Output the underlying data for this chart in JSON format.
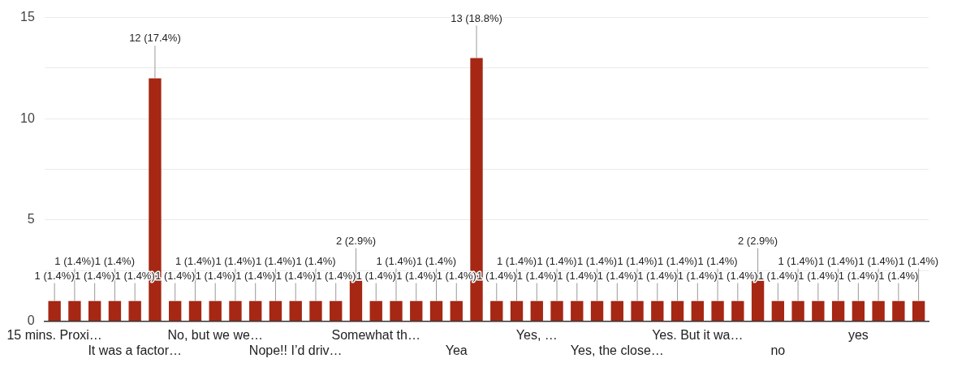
{
  "chart_data": {
    "type": "bar",
    "categories": [
      "15 mins. Proxi…",
      null,
      null,
      null,
      "It was a factor…",
      null,
      null,
      null,
      "No, but we we…",
      null,
      null,
      null,
      "Nope!! I’d driv…",
      null,
      null,
      null,
      "Somewhat th…",
      null,
      null,
      null,
      "Yea",
      null,
      null,
      null,
      "Yes, …",
      null,
      null,
      null,
      "Yes, the close…",
      null,
      null,
      null,
      "Yes. But it wa…",
      null,
      null,
      null,
      "no",
      null,
      null,
      null,
      "yes",
      null,
      null,
      null
    ],
    "values": [
      1,
      1,
      1,
      1,
      1,
      12,
      1,
      1,
      1,
      1,
      1,
      1,
      1,
      1,
      1,
      2,
      1,
      1,
      1,
      1,
      1,
      13,
      1,
      1,
      1,
      1,
      1,
      1,
      1,
      1,
      1,
      1,
      1,
      1,
      1,
      2,
      1,
      1,
      1,
      1,
      1,
      1,
      1,
      1
    ],
    "value_labels": [
      "1 (1.4%)",
      "1 (1.4%)",
      "1 (1.4%)",
      "1 (1.4%)",
      "1 (1.4%)",
      "12 (17.4%)",
      "1 (1.4%)",
      "1 (1.4%)",
      "1 (1.4%)",
      "1 (1.4%)",
      "1 (1.4%)",
      "1 (1.4%)",
      "1 (1.4%)",
      "1 (1.4%)",
      "1 (1.4%)",
      "2 (2.9%)",
      "1 (1.4%)",
      "1 (1.4%)",
      "1 (1.4%)",
      "1 (1.4%)",
      "1 (1.4%)",
      "13 (18.8%)",
      "1 (1.4%)",
      "1 (1.4%)",
      "1 (1.4%)",
      "1 (1.4%)",
      "1 (1.4%)",
      "1 (1.4%)",
      "1 (1.4%)",
      "1 (1.4%)",
      "1 (1.4%)",
      "1 (1.4%)",
      "1 (1.4%)",
      "1 (1.4%)",
      "1 (1.4%)",
      "2 (2.9%)",
      "1 (1.4%)",
      "1 (1.4%)",
      "1 (1.4%)",
      "1 (1.4%)",
      "1 (1.4%)",
      "1 (1.4%)",
      "1 (1.4%)",
      "1 (1.4%)"
    ],
    "color": "#a52714",
    "ylim": [
      0,
      15
    ],
    "yticks": [
      0,
      {
        "value": 2.5,
        "label": null
      },
      5,
      {
        "value": 7.5,
        "label": null
      },
      10,
      {
        "value": 12.5,
        "label": null
      },
      15
    ],
    "grid": "y",
    "legend": false
  }
}
